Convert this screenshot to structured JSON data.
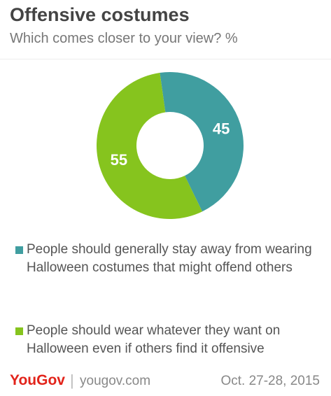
{
  "chart_data": {
    "type": "pie",
    "title": "Offensive costumes",
    "subtitle": "Which comes closer to your view? %",
    "categories": [
      "People should generally stay away from wearing Halloween costumes that might offend others",
      "People should wear whatever they want on Halloween even if others find it offensive"
    ],
    "values": [
      45,
      55
    ],
    "colors": [
      "#409ea0",
      "#86c41e"
    ],
    "brand": "YouGov",
    "source": "yougov.com",
    "date": "Oct. 27-28, 2015"
  }
}
